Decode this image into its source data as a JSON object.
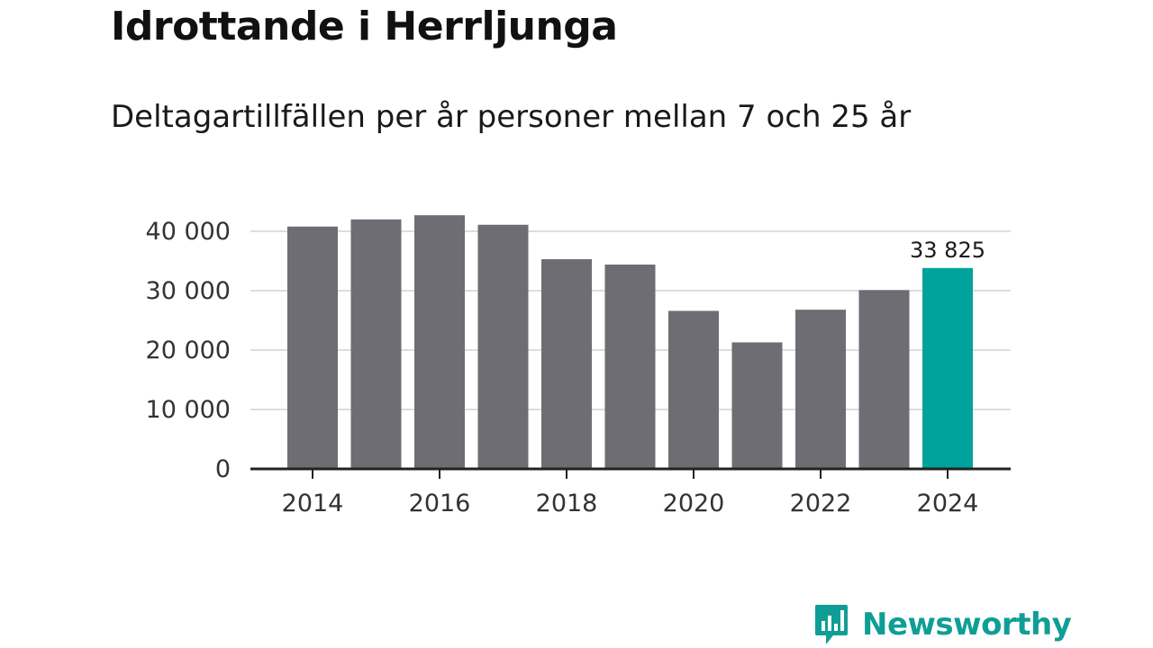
{
  "title": "Idrottande i Herrljunga",
  "subtitle": "Deltagartillfällen per år personer mellan 7 och 25 år",
  "brand": {
    "name": "Newsworthy",
    "icon": "bar-chart-speech-bubble-icon",
    "color": "#0f9e95"
  },
  "colors": {
    "bar": "#6e6d73",
    "highlight": "#00a39b",
    "grid": "#dddddd",
    "axis": "#222222"
  },
  "chart_data": {
    "type": "bar",
    "title": "Idrottande i Herrljunga",
    "subtitle": "Deltagartillfällen per år personer mellan 7 och 25 år",
    "xlabel": "",
    "ylabel": "",
    "categories": [
      "2014",
      "2015",
      "2016",
      "2017",
      "2018",
      "2019",
      "2020",
      "2021",
      "2022",
      "2023",
      "2024"
    ],
    "values": [
      40800,
      42000,
      42700,
      41100,
      35300,
      34400,
      26600,
      21300,
      26800,
      30100,
      33825
    ],
    "ylim": [
      0,
      40000
    ],
    "yticks": [
      0,
      10000,
      20000,
      30000,
      40000
    ],
    "ytick_labels": [
      "0",
      "10 000",
      "20 000",
      "30 000",
      "40 000"
    ],
    "xtick_labels": [
      "2014",
      "2016",
      "2018",
      "2020",
      "2022",
      "2024"
    ],
    "highlight_index": 10,
    "data_labels": [
      {
        "index": 10,
        "text": "33 825"
      }
    ],
    "grid": true,
    "legend": "none"
  }
}
